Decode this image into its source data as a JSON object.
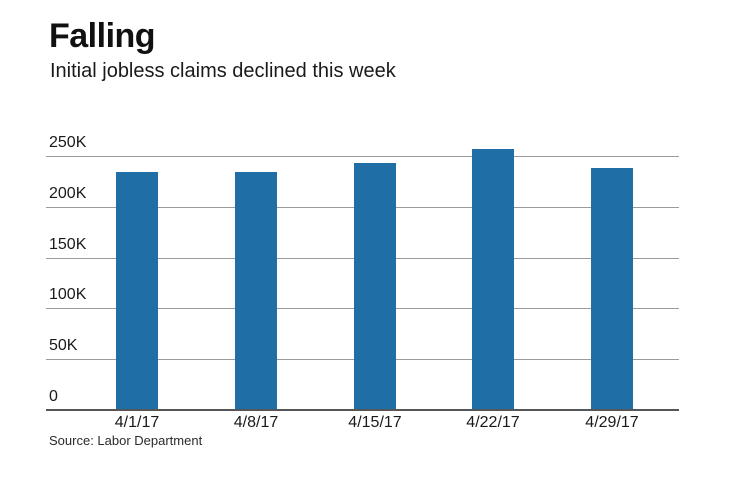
{
  "header": {
    "title": "Falling",
    "subtitle": "Initial jobless claims declined this week"
  },
  "source_note": "Source: Labor Department",
  "colors": {
    "bar": "#1f6fa6",
    "gridline": "#9b9b9b",
    "axis_line": "#55565a",
    "heading_text": "#111111",
    "tick_text": "#1a1a1a",
    "source_text": "#2b2b2b",
    "background": "#ffffff"
  },
  "chart_data": {
    "type": "bar",
    "title": "Falling",
    "subtitle": "Initial jobless claims declined this week",
    "series_name": "Initial jobless claims",
    "categories": [
      "4/1/17",
      "4/8/17",
      "4/15/17",
      "4/22/17",
      "4/29/17"
    ],
    "values": [
      234000,
      234000,
      243000,
      257000,
      238000
    ],
    "xlabel": "",
    "ylabel": "",
    "ylim": [
      0,
      250000
    ],
    "yticks": [
      0,
      50000,
      100000,
      150000,
      200000,
      250000
    ],
    "ytick_labels": [
      "0",
      "50K",
      "100K",
      "150K",
      "200K",
      "250K"
    ],
    "grid": true,
    "legend": false,
    "bar_color": "#1f6fa6",
    "source": "Source: Labor Department"
  }
}
